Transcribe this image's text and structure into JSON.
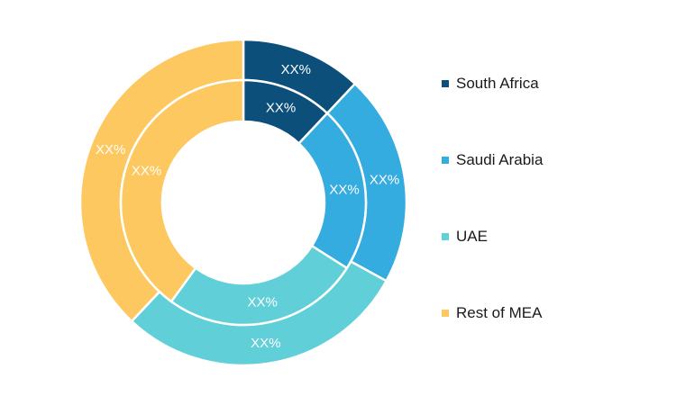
{
  "chart_data": {
    "type": "pie",
    "variant": "nested-donut",
    "series": [
      {
        "ring": "outer",
        "values": [
          12,
          21,
          29,
          38
        ],
        "labels": [
          "XX%",
          "XX%",
          "XX%",
          "XX%"
        ]
      },
      {
        "ring": "inner",
        "values": [
          12,
          22,
          26,
          40
        ],
        "labels": [
          "XX%",
          "XX%",
          "XX%",
          "XX%"
        ]
      }
    ],
    "categories": [
      "South Africa",
      "Saudi Arabia",
      "UAE",
      "Rest of MEA"
    ],
    "colors": [
      "#0b4f7a",
      "#35ace0",
      "#61cfd8",
      "#fdc85f"
    ],
    "legend_position": "right"
  },
  "legend": {
    "items": [
      {
        "label": "South Africa",
        "color": "#0b4f7a"
      },
      {
        "label": "Saudi Arabia",
        "color": "#35ace0"
      },
      {
        "label": "UAE",
        "color": "#61cfd8"
      },
      {
        "label": "Rest of MEA",
        "color": "#fdc85f"
      }
    ]
  }
}
